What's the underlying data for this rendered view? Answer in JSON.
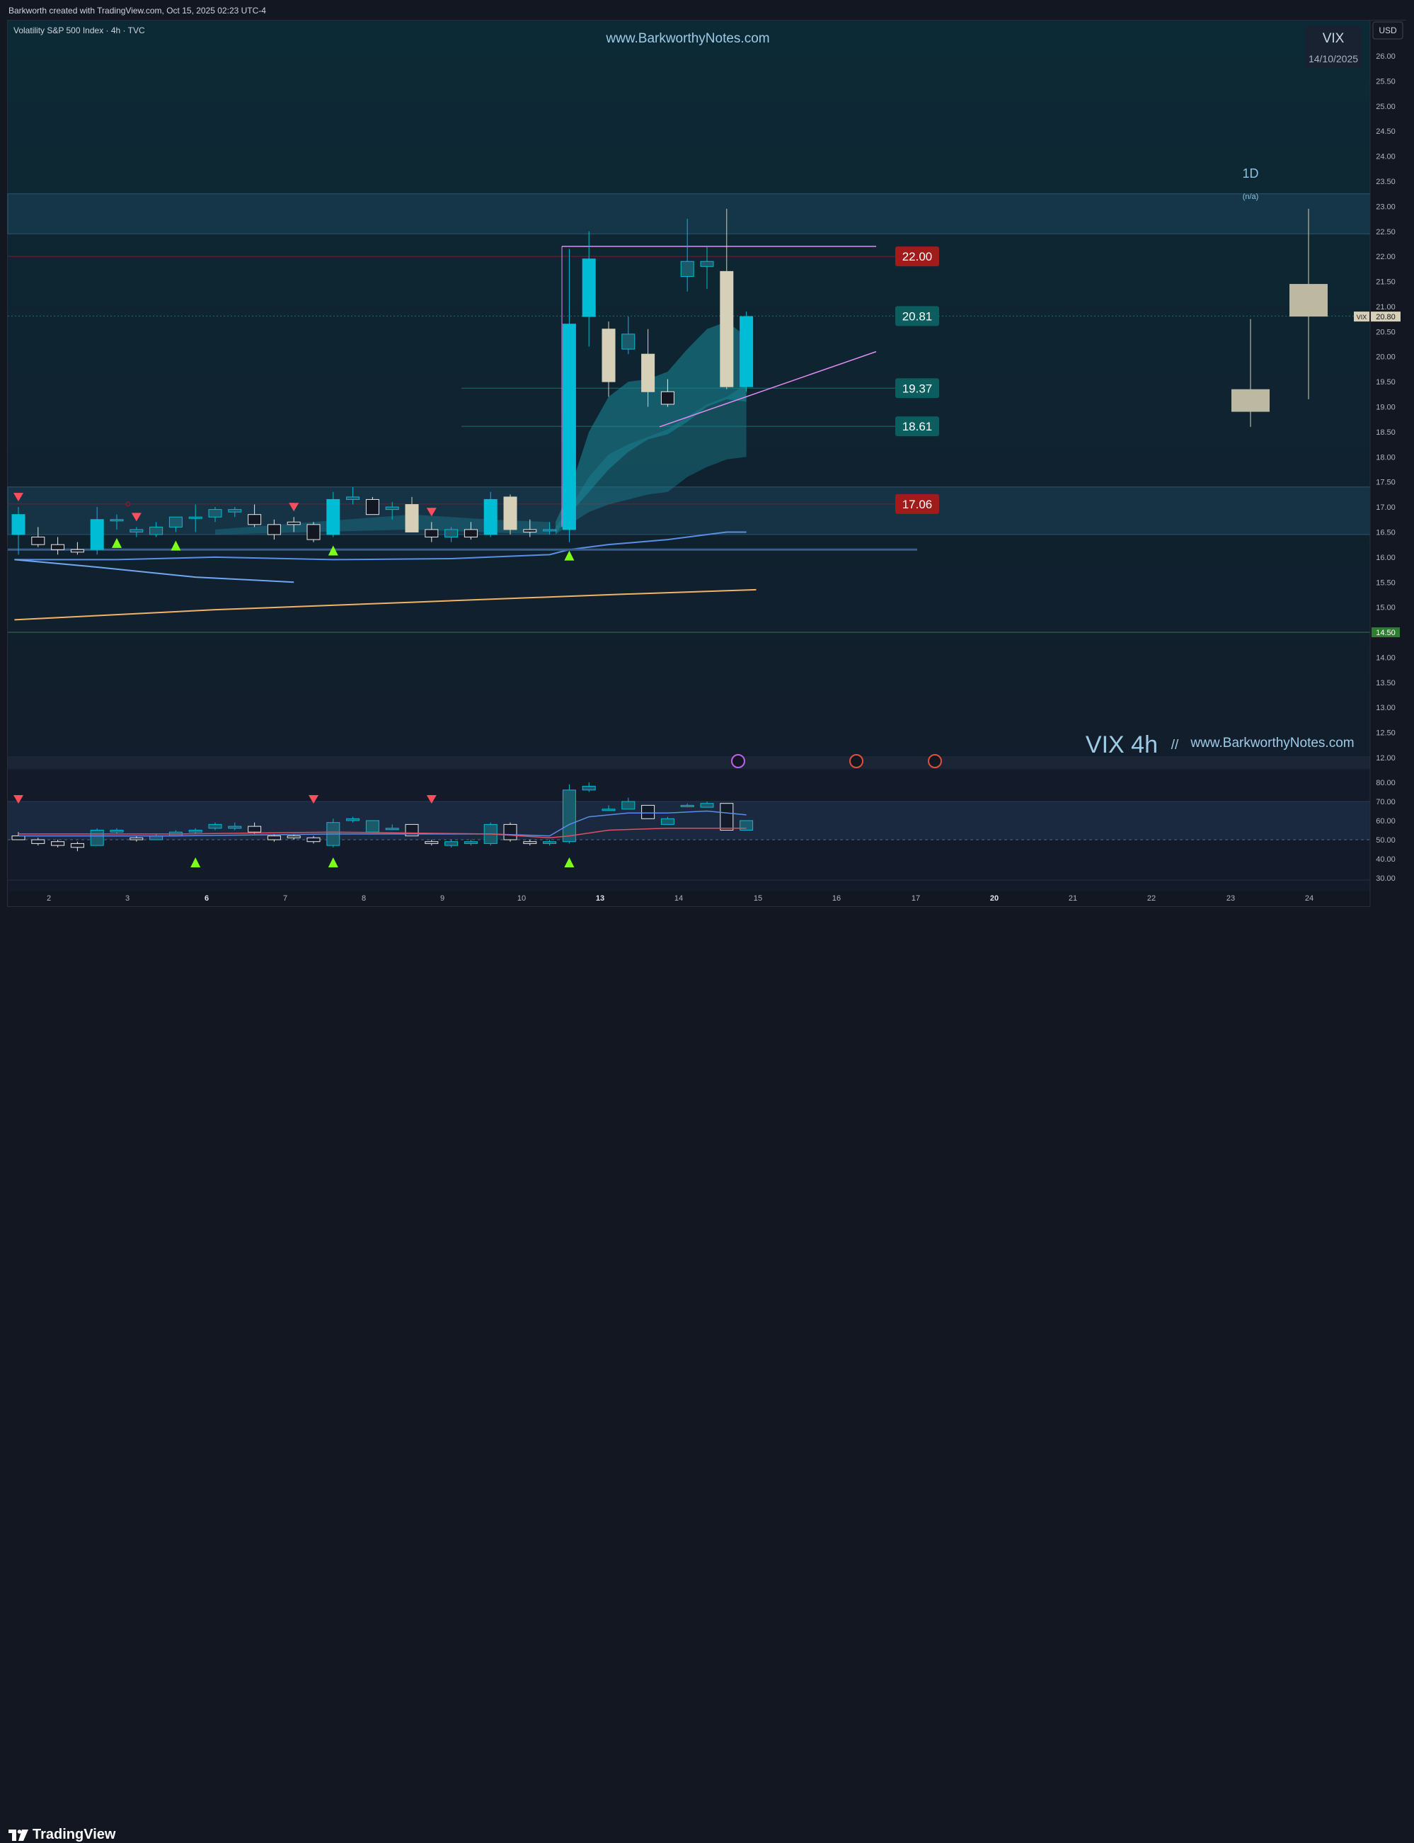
{
  "header": {
    "attribution": "Barkworth created with TradingView.com, Oct 15, 2025 02:23 UTC-4"
  },
  "legend": {
    "symbol_line": "Volatility S&P 500 Index · 4h · TVC",
    "currency_button": "USD",
    "watermark_url": "www.BarkworthyNotes.com",
    "watermark_big": "VIX 4h",
    "watermark_sep": "//",
    "watermark_url2": "www.BarkworthyNotes.com"
  },
  "info_box": {
    "title": "VIX",
    "date": "14/10/2025"
  },
  "daily_panel": {
    "title": "1D",
    "subtitle": "(n/a)"
  },
  "brand": {
    "name": "TradingView"
  },
  "colors": {
    "background": "#131722",
    "bull_candle": "#00bcd4",
    "bear_candle": "#d6d0b8",
    "level_red": "#a11b1b",
    "level_teal": "#0b5d5e",
    "trendline_purple": "#e58cf5",
    "ma_blue": "#5b8ee8",
    "ma_orange": "#f2b366",
    "signal_up": "#7dff1c",
    "signal_down": "#ff4d5e"
  },
  "chart_data": {
    "type": "candlestick",
    "symbol": "VIX",
    "timeframe": "4h",
    "yaxis": {
      "range": [
        11.6,
        26.4
      ],
      "ticks": [
        "26.00",
        "25.50",
        "25.00",
        "24.50",
        "24.00",
        "23.50",
        "23.00",
        "22.50",
        "22.00",
        "21.50",
        "21.00",
        "20.50",
        "20.00",
        "19.50",
        "19.00",
        "18.50",
        "18.00",
        "17.50",
        "17.00",
        "16.50",
        "16.00",
        "15.50",
        "15.00",
        "14.50",
        "14.00",
        "13.50",
        "13.00",
        "12.50",
        "12.00"
      ],
      "highlight_tick": "14.50",
      "last_price_tag": {
        "symbol": "VIX",
        "value": "20.80"
      }
    },
    "xaxis": {
      "labels": [
        "2",
        "3",
        "6",
        "7",
        "8",
        "9",
        "10",
        "13",
        "14",
        "15",
        "16",
        "17",
        "20",
        "21",
        "22",
        "23",
        "24"
      ],
      "bold_labels": [
        "6",
        "13",
        "20"
      ]
    },
    "levels": [
      {
        "value": 22.0,
        "label": "22.00",
        "style": "red"
      },
      {
        "value": 20.81,
        "label": "20.81",
        "style": "teal"
      },
      {
        "value": 19.37,
        "label": "19.37",
        "style": "teal"
      },
      {
        "value": 18.61,
        "label": "18.61",
        "style": "teal"
      },
      {
        "value": 17.06,
        "label": "17.06",
        "style": "red"
      }
    ],
    "zones": [
      {
        "from": 22.45,
        "to": 23.25
      },
      {
        "from": 16.45,
        "to": 17.4
      }
    ],
    "candles_4h": [
      {
        "o": 16.45,
        "h": 17.0,
        "l": 16.05,
        "c": 16.85
      },
      {
        "o": 16.4,
        "h": 16.6,
        "l": 16.2,
        "c": 16.25
      },
      {
        "o": 16.25,
        "h": 16.4,
        "l": 16.05,
        "c": 16.15
      },
      {
        "o": 16.15,
        "h": 16.3,
        "l": 16.05,
        "c": 16.1
      },
      {
        "o": 16.15,
        "h": 17.0,
        "l": 16.05,
        "c": 16.75
      },
      {
        "o": 16.75,
        "h": 16.85,
        "l": 16.55,
        "c": 16.75
      },
      {
        "o": 16.5,
        "h": 16.6,
        "l": 16.4,
        "c": 16.55
      },
      {
        "o": 16.45,
        "h": 16.7,
        "l": 16.4,
        "c": 16.6
      },
      {
        "o": 16.6,
        "h": 16.8,
        "l": 16.5,
        "c": 16.8
      },
      {
        "o": 16.8,
        "h": 17.05,
        "l": 16.5,
        "c": 16.8
      },
      {
        "o": 16.8,
        "h": 17.0,
        "l": 16.7,
        "c": 16.95
      },
      {
        "o": 16.9,
        "h": 17.0,
        "l": 16.8,
        "c": 16.95
      },
      {
        "o": 16.85,
        "h": 17.05,
        "l": 16.6,
        "c": 16.65
      },
      {
        "o": 16.65,
        "h": 16.75,
        "l": 16.35,
        "c": 16.45
      },
      {
        "o": 16.7,
        "h": 16.8,
        "l": 16.5,
        "c": 16.65
      },
      {
        "o": 16.65,
        "h": 16.7,
        "l": 16.3,
        "c": 16.35
      },
      {
        "o": 16.45,
        "h": 17.3,
        "l": 16.4,
        "c": 17.15
      },
      {
        "o": 17.15,
        "h": 17.4,
        "l": 17.05,
        "c": 17.2
      },
      {
        "o": 17.15,
        "h": 17.2,
        "l": 16.85,
        "c": 16.85
      },
      {
        "o": 16.95,
        "h": 17.1,
        "l": 16.75,
        "c": 17.0
      },
      {
        "o": 17.05,
        "h": 17.2,
        "l": 16.5,
        "c": 16.5
      },
      {
        "o": 16.55,
        "h": 16.7,
        "l": 16.3,
        "c": 16.4
      },
      {
        "o": 16.4,
        "h": 16.6,
        "l": 16.3,
        "c": 16.55
      },
      {
        "o": 16.55,
        "h": 16.7,
        "l": 16.35,
        "c": 16.4
      },
      {
        "o": 16.45,
        "h": 17.3,
        "l": 16.4,
        "c": 17.15
      },
      {
        "o": 17.2,
        "h": 17.25,
        "l": 16.45,
        "c": 16.55
      },
      {
        "o": 16.55,
        "h": 16.75,
        "l": 16.4,
        "c": 16.5
      },
      {
        "o": 16.55,
        "h": 16.7,
        "l": 16.45,
        "c": 16.55
      },
      {
        "o": 16.55,
        "h": 22.15,
        "l": 16.3,
        "c": 20.65
      },
      {
        "o": 20.8,
        "h": 22.5,
        "l": 20.2,
        "c": 21.95
      },
      {
        "o": 20.55,
        "h": 20.7,
        "l": 19.2,
        "c": 19.5
      },
      {
        "o": 20.15,
        "h": 20.8,
        "l": 20.05,
        "c": 20.45
      },
      {
        "o": 20.05,
        "h": 20.55,
        "l": 19.0,
        "c": 19.3
      },
      {
        "o": 19.3,
        "h": 19.55,
        "l": 19.0,
        "c": 19.05
      },
      {
        "o": 21.6,
        "h": 22.75,
        "l": 21.3,
        "c": 21.9
      },
      {
        "o": 21.8,
        "h": 22.2,
        "l": 21.35,
        "c": 21.9
      },
      {
        "o": 21.7,
        "h": 22.95,
        "l": 19.35,
        "c": 19.4
      },
      {
        "o": 19.4,
        "h": 20.9,
        "l": 19.3,
        "c": 20.8
      }
    ],
    "candles_1d": [
      {
        "o": 18.9,
        "h": 20.75,
        "l": 18.6,
        "c": 19.35
      },
      {
        "o": 20.8,
        "h": 22.95,
        "l": 19.15,
        "c": 21.45
      }
    ],
    "oscillator": {
      "range": [
        25,
        85
      ],
      "ticks": [
        "80.00",
        "70.00",
        "60.00",
        "50.00",
        "40.00",
        "30.00"
      ],
      "band": [
        50,
        70
      ],
      "candles": [
        {
          "o": 52,
          "h": 54,
          "l": 50,
          "c": 50
        },
        {
          "o": 50,
          "h": 51,
          "l": 47,
          "c": 48
        },
        {
          "o": 49,
          "h": 50,
          "l": 46,
          "c": 47
        },
        {
          "o": 48,
          "h": 49,
          "l": 44,
          "c": 46
        },
        {
          "o": 47,
          "h": 56,
          "l": 47,
          "c": 55
        },
        {
          "o": 54,
          "h": 56,
          "l": 53,
          "c": 55
        },
        {
          "o": 51,
          "h": 52,
          "l": 49,
          "c": 50
        },
        {
          "o": 50,
          "h": 53,
          "l": 50,
          "c": 52
        },
        {
          "o": 52,
          "h": 55,
          "l": 52,
          "c": 54
        },
        {
          "o": 54,
          "h": 56,
          "l": 53,
          "c": 55
        },
        {
          "o": 56,
          "h": 59,
          "l": 55,
          "c": 58
        },
        {
          "o": 56,
          "h": 59,
          "l": 55,
          "c": 57
        },
        {
          "o": 57,
          "h": 59,
          "l": 53,
          "c": 54
        },
        {
          "o": 52,
          "h": 53,
          "l": 49,
          "c": 50
        },
        {
          "o": 52,
          "h": 53,
          "l": 50,
          "c": 51
        },
        {
          "o": 51,
          "h": 52,
          "l": 48,
          "c": 49
        },
        {
          "o": 47,
          "h": 61,
          "l": 46,
          "c": 59
        },
        {
          "o": 60,
          "h": 62,
          "l": 59,
          "c": 61
        },
        {
          "o": 54,
          "h": 60,
          "l": 54,
          "c": 60
        },
        {
          "o": 56,
          "h": 58,
          "l": 55,
          "c": 56
        },
        {
          "o": 58,
          "h": 58,
          "l": 52,
          "c": 52
        },
        {
          "o": 49,
          "h": 50,
          "l": 47,
          "c": 48
        },
        {
          "o": 47,
          "h": 50,
          "l": 46,
          "c": 49
        },
        {
          "o": 48,
          "h": 50,
          "l": 47,
          "c": 49
        },
        {
          "o": 48,
          "h": 59,
          "l": 47,
          "c": 58
        },
        {
          "o": 58,
          "h": 59,
          "l": 49,
          "c": 50
        },
        {
          "o": 49,
          "h": 50,
          "l": 47,
          "c": 48
        },
        {
          "o": 48,
          "h": 50,
          "l": 47,
          "c": 49
        },
        {
          "o": 49,
          "h": 79,
          "l": 48,
          "c": 76
        },
        {
          "o": 76,
          "h": 80,
          "l": 75,
          "c": 78
        },
        {
          "o": 66,
          "h": 68,
          "l": 65,
          "c": 66
        },
        {
          "o": 66,
          "h": 72,
          "l": 66,
          "c": 70
        },
        {
          "o": 68,
          "h": 68,
          "l": 61,
          "c": 61
        },
        {
          "o": 58,
          "h": 62,
          "l": 58,
          "c": 61
        },
        {
          "o": 68,
          "h": 69,
          "l": 67,
          "c": 68
        },
        {
          "o": 67,
          "h": 70,
          "l": 67,
          "c": 69
        },
        {
          "o": 69,
          "h": 69,
          "l": 55,
          "c": 55
        },
        {
          "o": 55,
          "h": 60,
          "l": 55,
          "c": 60
        }
      ],
      "upper_arrows": [
        0,
        15,
        21
      ],
      "lower_arrows": [
        9,
        16,
        28
      ]
    },
    "signals_up": [
      5,
      8,
      16,
      28
    ],
    "signals_down": [
      0,
      6,
      14,
      21
    ],
    "event_icons": [
      "earnings-icon",
      "us-flag-icon",
      "us-flag-icon"
    ]
  }
}
